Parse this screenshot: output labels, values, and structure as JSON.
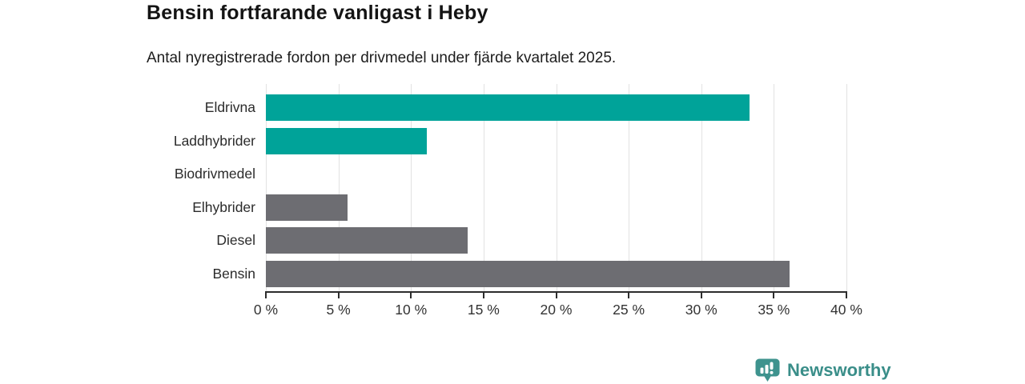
{
  "header": {
    "title": "Bensin fortfarande vanligast i Heby",
    "subtitle": "Antal nyregistrerade fordon per drivmedel under fjärde kvartalet 2025."
  },
  "chart_data": {
    "type": "bar",
    "orientation": "horizontal",
    "title": "Bensin fortfarande vanligast i Heby",
    "subtitle": "Antal nyregistrerade fordon per drivmedel under fjärde kvartalet 2025.",
    "categories": [
      "Eldrivna",
      "Laddhybrider",
      "Biodrivmedel",
      "Elhybrider",
      "Diesel",
      "Bensin"
    ],
    "values": [
      33.3,
      11.1,
      0,
      5.6,
      13.9,
      36.1
    ],
    "unit": "%",
    "bar_colors": [
      "#00a399",
      "#00a399",
      "#6d6d72",
      "#6d6d72",
      "#6d6d72",
      "#6d6d72"
    ],
    "xlim": [
      0,
      40
    ],
    "x_ticks": [
      0,
      5,
      10,
      15,
      20,
      25,
      30,
      35,
      40
    ],
    "x_tick_labels": [
      "0 %",
      "5 %",
      "10 %",
      "15 %",
      "20 %",
      "25 %",
      "30 %",
      "35 %",
      "40 %"
    ],
    "xlabel": "",
    "ylabel": "",
    "grid": "vertical",
    "legend": "none"
  },
  "footer": {
    "brand": "Newsworthy",
    "logo_icon": "bar-chart-speech-bubble-icon",
    "brand_color": "#3a8e89",
    "logo_fill": "#3e938e"
  },
  "colors": {
    "accent_teal": "#00a399",
    "neutral_gray": "#6d6d72",
    "gridline": "#e2e2e2",
    "axis_line": "#2d2d2d",
    "background": "#ffffff"
  }
}
